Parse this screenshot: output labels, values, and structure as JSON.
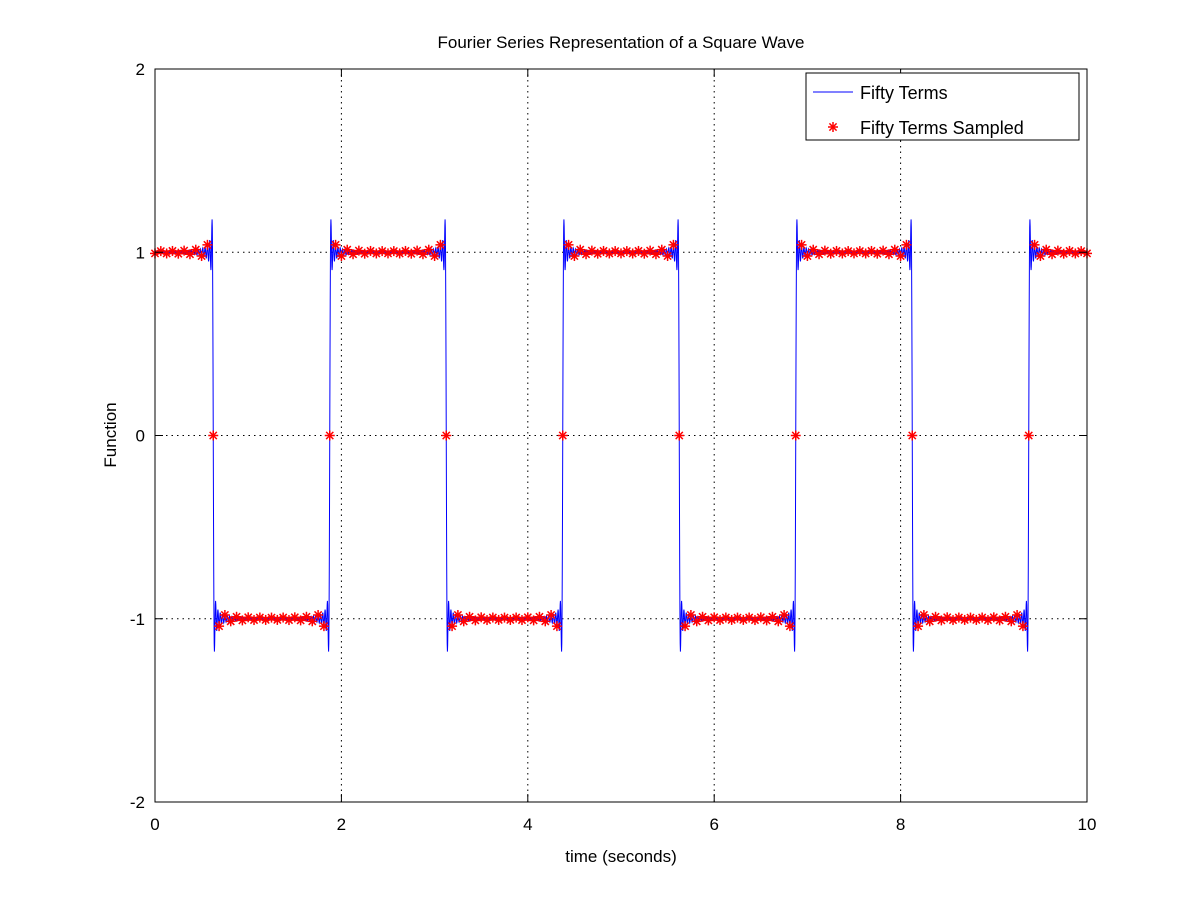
{
  "chart_data": {
    "type": "line",
    "title": "Fourier Series Representation of a Square Wave",
    "xlabel": "time (seconds)",
    "ylabel": "Function",
    "xlim": [
      0,
      10
    ],
    "ylim": [
      -2,
      2
    ],
    "xticks": [
      0,
      2,
      4,
      6,
      8,
      10
    ],
    "xtick_labels": [
      "0",
      "2",
      "4",
      "6",
      "8",
      "10"
    ],
    "yticks": [
      -2,
      -1,
      0,
      1,
      2
    ],
    "ytick_labels": [
      "-2",
      "-1",
      "0",
      "1",
      "2"
    ],
    "grid": true,
    "legend_position": "top-right",
    "signal": {
      "waveform": "square",
      "amplitude": 1,
      "period": 2.5,
      "harmonics": 50,
      "first_falling_edge": 0.625
    },
    "series": [
      {
        "name": "Fifty Terms",
        "style": "line",
        "color": "#0000ff"
      },
      {
        "name": "Fifty Terms Sampled",
        "style": "asterisk",
        "color": "#ff0000",
        "sample_interval": 0.0625
      }
    ]
  }
}
